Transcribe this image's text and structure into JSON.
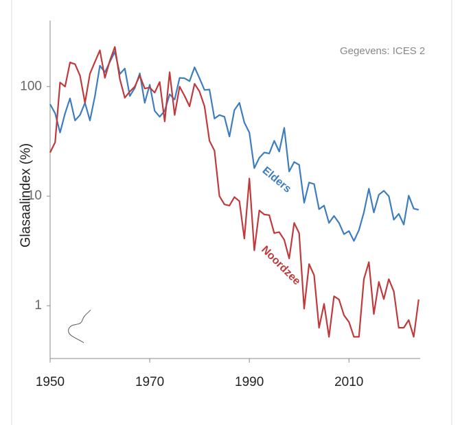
{
  "chart_data": {
    "type": "line",
    "y_label": "Glasaalindex (%)",
    "annotations": [
      "Gegevens: ICES 2",
      "Elders",
      "Noordzee"
    ],
    "x": [
      1950,
      1951,
      1952,
      1953,
      1954,
      1955,
      1956,
      1957,
      1958,
      1959,
      1960,
      1961,
      1962,
      1963,
      1964,
      1965,
      1966,
      1967,
      1968,
      1969,
      1970,
      1971,
      1972,
      1973,
      1974,
      1975,
      1976,
      1977,
      1978,
      1979,
      1980,
      1981,
      1982,
      1983,
      1984,
      1985,
      1986,
      1987,
      1988,
      1989,
      1990,
      1991,
      1992,
      1993,
      1994,
      1995,
      1996,
      1997,
      1998,
      1999,
      2000,
      2001,
      2002,
      2003,
      2004,
      2005,
      2006,
      2007,
      2008,
      2009,
      2010,
      2011,
      2012,
      2013,
      2014,
      2015,
      2016,
      2017,
      2018,
      2019,
      2020,
      2021,
      2022,
      2023,
      2024
    ],
    "series": [
      {
        "name": "Elders",
        "color": "#3d7dbf",
        "values": [
          69,
          57,
          38,
          57,
          78,
          49,
          55,
          71,
          49,
          82,
          155,
          135,
          168,
          208,
          130,
          146,
          82,
          97,
          132,
          71,
          104,
          60,
          53,
          60,
          85,
          76,
          120,
          119,
          112,
          150,
          119,
          93,
          94,
          51,
          55,
          53,
          35,
          61,
          71,
          47,
          38,
          18,
          22.4,
          25,
          24.5,
          32,
          25.5,
          42,
          16.8,
          20.5,
          19.3,
          8.7,
          13.3,
          12.9,
          7.6,
          8.2,
          5.7,
          6.6,
          5.7,
          4.5,
          4.8,
          3.9,
          4.9,
          7.1,
          11.7,
          7.1,
          10.3,
          11.2,
          10,
          6.1,
          6.9,
          5.5,
          10.1,
          7.7,
          7.5
        ]
      },
      {
        "name": "Noordzee",
        "color": "#c0393b",
        "values": [
          25,
          31,
          109,
          100,
          166,
          160,
          126,
          71,
          131,
          168,
          214,
          120,
          173,
          230,
          117,
          79,
          90,
          100,
          126,
          96,
          98,
          88,
          110,
          48,
          135,
          55,
          100,
          82,
          66,
          106,
          90,
          66,
          32,
          26,
          10,
          8.4,
          8.2,
          9.8,
          9.0,
          4.1,
          14.5,
          3.2,
          7.4,
          6.8,
          6.7,
          4.6,
          4.7,
          4.0,
          2.7,
          5.7,
          4.6,
          0.94,
          2.4,
          1.9,
          0.63,
          1.04,
          0.52,
          1.22,
          1.14,
          0.82,
          0.71,
          0.52,
          0.52,
          1.75,
          2.5,
          0.84,
          1.65,
          1.15,
          1.75,
          1.35,
          0.63,
          0.63,
          0.74,
          0.52,
          1.14
        ]
      }
    ],
    "xlim": [
      1950,
      2024.3
    ],
    "xticks": [
      1950,
      1970,
      1990,
      2010
    ],
    "ylim": [
      0.33,
      400
    ],
    "yticks": [
      1,
      10,
      100
    ],
    "log_y": true,
    "grid": false
  }
}
